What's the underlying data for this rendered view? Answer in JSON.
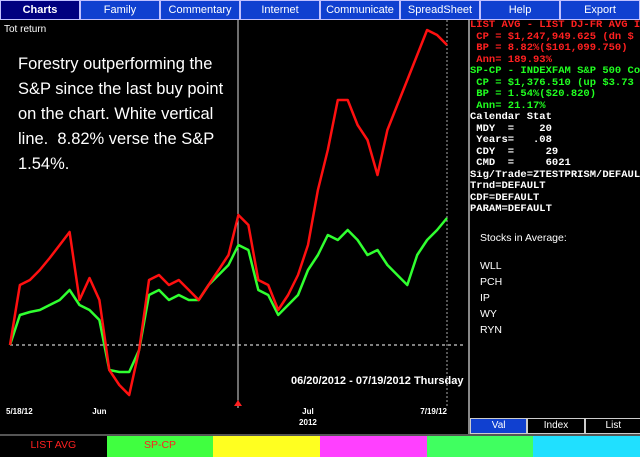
{
  "menu": {
    "tabs": [
      "Charts",
      "Family",
      "Commentary",
      "Internet",
      "Communicate",
      "SpreadSheet",
      "Help",
      "Export"
    ]
  },
  "chart": {
    "label": "Tot return",
    "annotation": "Forestry outperforming the S&P since the last buy point on the chart. White vertical line.  8.82% verse the S&P 1.54%.",
    "date_range": "06/20/2012 - 07/19/2012 Thursday"
  },
  "chart_data": {
    "type": "line",
    "categories": [
      "5/18/12",
      null,
      null,
      null,
      null,
      null,
      null,
      null,
      null,
      "Jun",
      null,
      null,
      null,
      null,
      null,
      null,
      null,
      null,
      null,
      null,
      null,
      null,
      null,
      null,
      null,
      null,
      null,
      null,
      null,
      null,
      "Jul",
      null,
      null,
      null,
      null,
      null,
      null,
      null,
      null,
      null,
      null,
      null,
      null,
      null,
      "7/19/12"
    ],
    "category_sublabels": [
      null,
      null,
      null,
      null,
      null,
      null,
      null,
      null,
      null,
      null,
      null,
      null,
      null,
      null,
      null,
      null,
      null,
      null,
      null,
      null,
      null,
      null,
      null,
      null,
      null,
      null,
      null,
      null,
      null,
      null,
      "2012",
      null,
      null,
      null,
      null,
      null,
      null,
      null,
      null,
      null,
      null,
      null,
      null,
      null,
      null
    ],
    "ylim": [
      -11,
      64
    ],
    "series": [
      {
        "name": "LIST AVG",
        "color": "#ff1010",
        "values": [
          0,
          12,
          13,
          15,
          17.4,
          20,
          22.6,
          9,
          13.4,
          9,
          -5,
          -8,
          -10,
          -1,
          13,
          14,
          12,
          13,
          11,
          9,
          12,
          15,
          18,
          26,
          24,
          13,
          12,
          7,
          10,
          14,
          20,
          31,
          39,
          49,
          49,
          44,
          41,
          34,
          43,
          48,
          53,
          58,
          63,
          62,
          60
        ]
      },
      {
        "name": "SP-CP",
        "color": "#30ff30",
        "values": [
          0,
          6,
          6.6,
          7,
          8,
          9,
          11,
          8,
          7,
          5,
          -5,
          -5.4,
          -5.4,
          -1,
          10,
          11,
          9,
          10,
          9,
          9,
          12,
          14,
          16,
          20,
          19,
          11,
          10,
          6,
          8,
          10,
          15,
          18,
          22,
          21,
          23,
          21,
          18,
          19,
          16,
          14,
          12,
          18,
          21,
          23,
          25.4
        ]
      }
    ]
  },
  "info": {
    "list_avg": [
      "LIST AVG - LIST DJ-FR AVG I",
      " CP = $1,247,949.625 (dn $",
      " BP = 8.82%($101,099.750)",
      " Ann= 189.93%"
    ],
    "sp_cp": [
      "SP-CP - INDEXFAM S&P 500 Co",
      " CP = $1,376.510 (up $3.73",
      " BP = 1.54%($20.820)",
      " Ann= 21.17%"
    ],
    "stats": [
      "Calendar Stat",
      " MDY  =    20",
      " Years=   .08",
      " CDY  =     29",
      " CMD  =     6021",
      "Sig/Trade=ZTESTPRISM/DEFAUL",
      "Trnd=DEFAULT",
      "CDF=DEFAULT",
      "PARAM=DEFAULT"
    ],
    "stocks_title": "Stocks in Average:",
    "stocks": [
      "WLL",
      "PCH",
      "IP",
      "WY",
      "RYN"
    ],
    "view_tabs": [
      "Val",
      "Index",
      "List"
    ]
  }
}
